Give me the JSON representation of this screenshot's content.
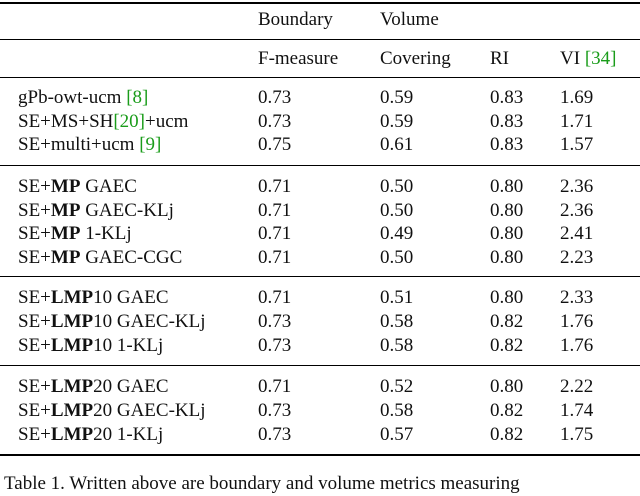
{
  "header": {
    "boundary": "Boundary",
    "volume": "Volume",
    "columns": {
      "fmeasure": "F-measure",
      "covering": "Covering",
      "ri": "RI",
      "vi_prefix": "VI ",
      "vi_cite": "[34]"
    }
  },
  "rows": [
    {
      "method": {
        "pre": "gPb-owt-ucm ",
        "bold": "",
        "mid": "",
        "cite": "[8]",
        "post": ""
      },
      "fm": "0.73",
      "cov": "0.59",
      "ri": "0.83",
      "vi": "1.69"
    },
    {
      "method": {
        "pre": "SE+MS+SH",
        "bold": "",
        "mid": "",
        "cite": "[20]",
        "post": "+ucm"
      },
      "fm": "0.73",
      "cov": "0.59",
      "ri": "0.83",
      "vi": "1.71"
    },
    {
      "method": {
        "pre": "SE+multi+ucm ",
        "bold": "",
        "mid": "",
        "cite": "[9]",
        "post": ""
      },
      "fm": "0.75",
      "cov": "0.61",
      "ri": "0.83",
      "vi": "1.57"
    },
    {
      "method": {
        "pre": "SE+",
        "bold": "MP",
        "mid": " GAEC",
        "cite": "",
        "post": ""
      },
      "fm": "0.71",
      "cov": "0.50",
      "ri": "0.80",
      "vi": "2.36"
    },
    {
      "method": {
        "pre": "SE+",
        "bold": "MP",
        "mid": " GAEC-KLj",
        "cite": "",
        "post": ""
      },
      "fm": "0.71",
      "cov": "0.50",
      "ri": "0.80",
      "vi": "2.36"
    },
    {
      "method": {
        "pre": "SE+",
        "bold": "MP",
        "mid": " 1-KLj",
        "cite": "",
        "post": ""
      },
      "fm": "0.71",
      "cov": "0.49",
      "ri": "0.80",
      "vi": "2.41"
    },
    {
      "method": {
        "pre": "SE+",
        "bold": "MP",
        "mid": " GAEC-CGC",
        "cite": "",
        "post": ""
      },
      "fm": "0.71",
      "cov": "0.50",
      "ri": "0.80",
      "vi": "2.23"
    },
    {
      "method": {
        "pre": "SE+",
        "bold": "LMP",
        "mid": "10 GAEC",
        "cite": "",
        "post": ""
      },
      "fm": "0.71",
      "cov": "0.51",
      "ri": "0.80",
      "vi": "2.33"
    },
    {
      "method": {
        "pre": "SE+",
        "bold": "LMP",
        "mid": "10 GAEC-KLj",
        "cite": "",
        "post": ""
      },
      "fm": "0.73",
      "cov": "0.58",
      "ri": "0.82",
      "vi": "1.76"
    },
    {
      "method": {
        "pre": "SE+",
        "bold": "LMP",
        "mid": "10 1-KLj",
        "cite": "",
        "post": ""
      },
      "fm": "0.73",
      "cov": "0.58",
      "ri": "0.82",
      "vi": "1.76"
    },
    {
      "method": {
        "pre": "SE+",
        "bold": "LMP",
        "mid": "20 GAEC",
        "cite": "",
        "post": ""
      },
      "fm": "0.71",
      "cov": "0.52",
      "ri": "0.80",
      "vi": "2.22"
    },
    {
      "method": {
        "pre": "SE+",
        "bold": "LMP",
        "mid": "20 GAEC-KLj",
        "cite": "",
        "post": ""
      },
      "fm": "0.73",
      "cov": "0.58",
      "ri": "0.82",
      "vi": "1.74"
    },
    {
      "method": {
        "pre": "SE+",
        "bold": "LMP",
        "mid": "20 1-KLj",
        "cite": "",
        "post": ""
      },
      "fm": "0.73",
      "cov": "0.57",
      "ri": "0.82",
      "vi": "1.75"
    }
  ],
  "caption": "Table 1. Written above are boundary and volume metrics measuring"
}
